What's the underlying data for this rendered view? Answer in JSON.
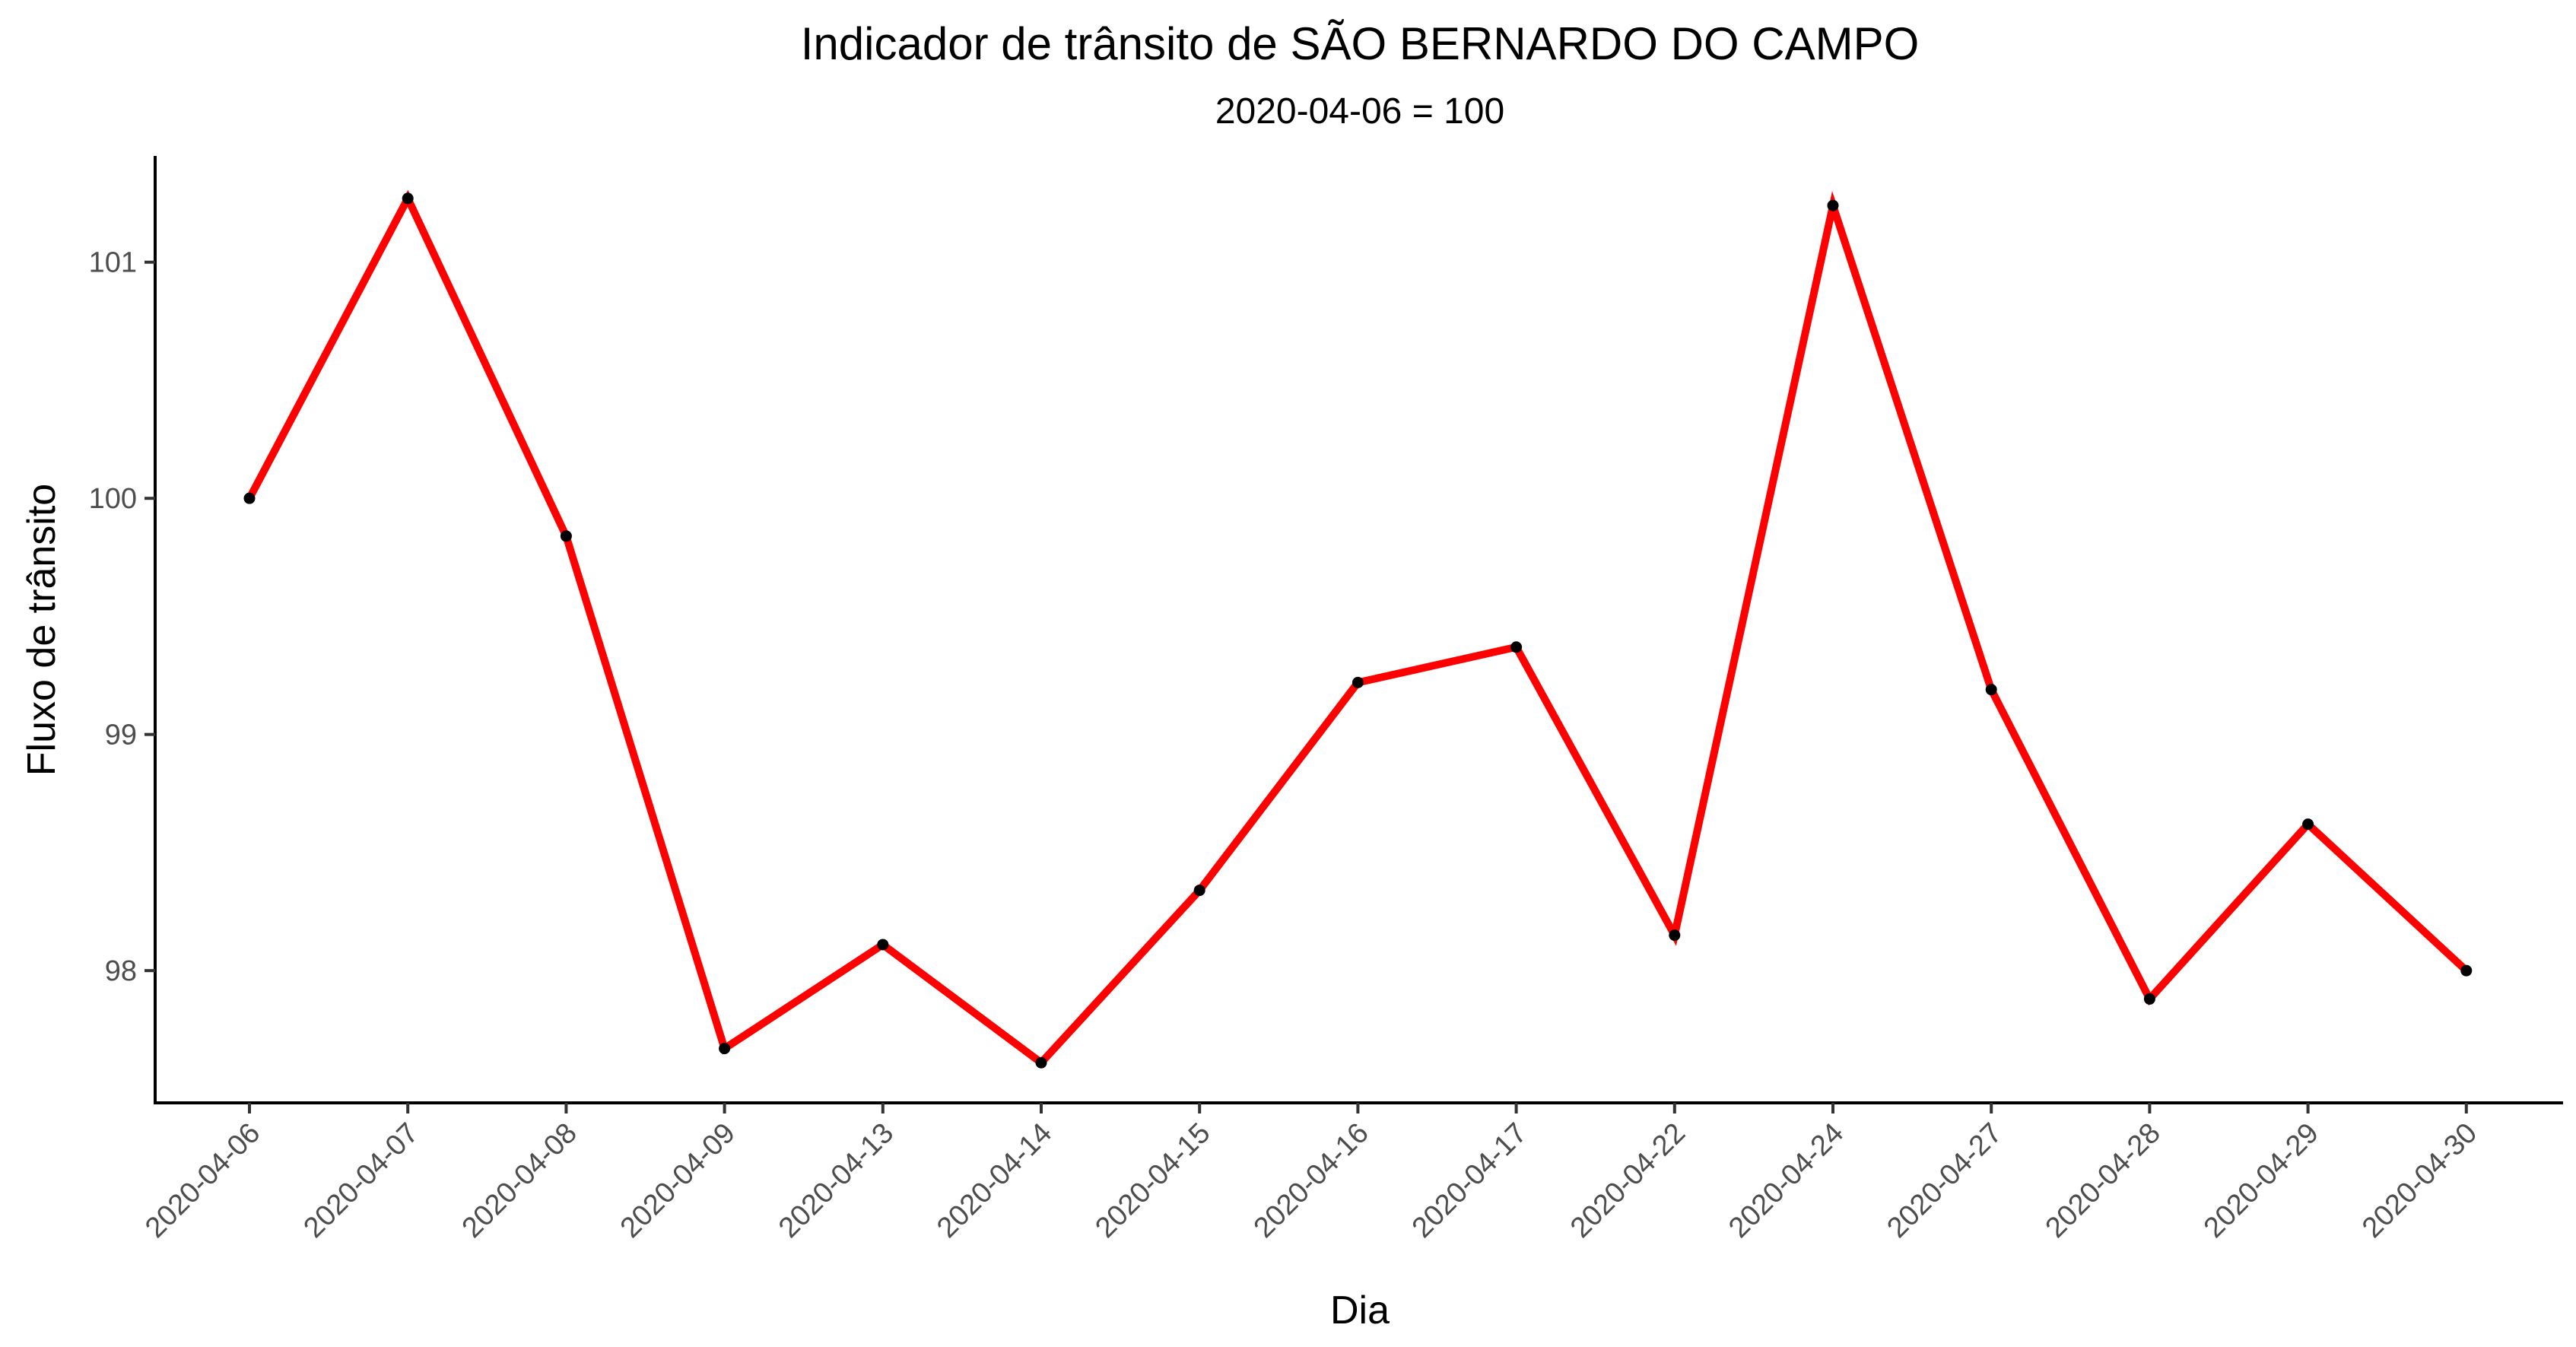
{
  "chart_data": {
    "type": "line",
    "title": "Indicador de trânsito de SÃO BERNARDO DO CAMPO",
    "subtitle": "2020-04-06 = 100",
    "xlabel": "Dia",
    "ylabel": "Fluxo de trânsito",
    "categories": [
      "2020-04-06",
      "2020-04-07",
      "2020-04-08",
      "2020-04-09",
      "2020-04-13",
      "2020-04-14",
      "2020-04-15",
      "2020-04-16",
      "2020-04-17",
      "2020-04-22",
      "2020-04-24",
      "2020-04-27",
      "2020-04-28",
      "2020-04-29",
      "2020-04-30"
    ],
    "series": [
      {
        "values": [
          100.0,
          101.27,
          99.84,
          97.67,
          98.11,
          97.61,
          98.34,
          99.22,
          99.37,
          98.15,
          101.24,
          99.19,
          97.88,
          98.62,
          98.0
        ]
      }
    ],
    "yticks": [
      98,
      99,
      100,
      101
    ],
    "ylim": [
      97.44,
      101.45
    ],
    "line_color": "#ff0000",
    "point_color": "#000000",
    "grid": false,
    "legend": "none"
  }
}
